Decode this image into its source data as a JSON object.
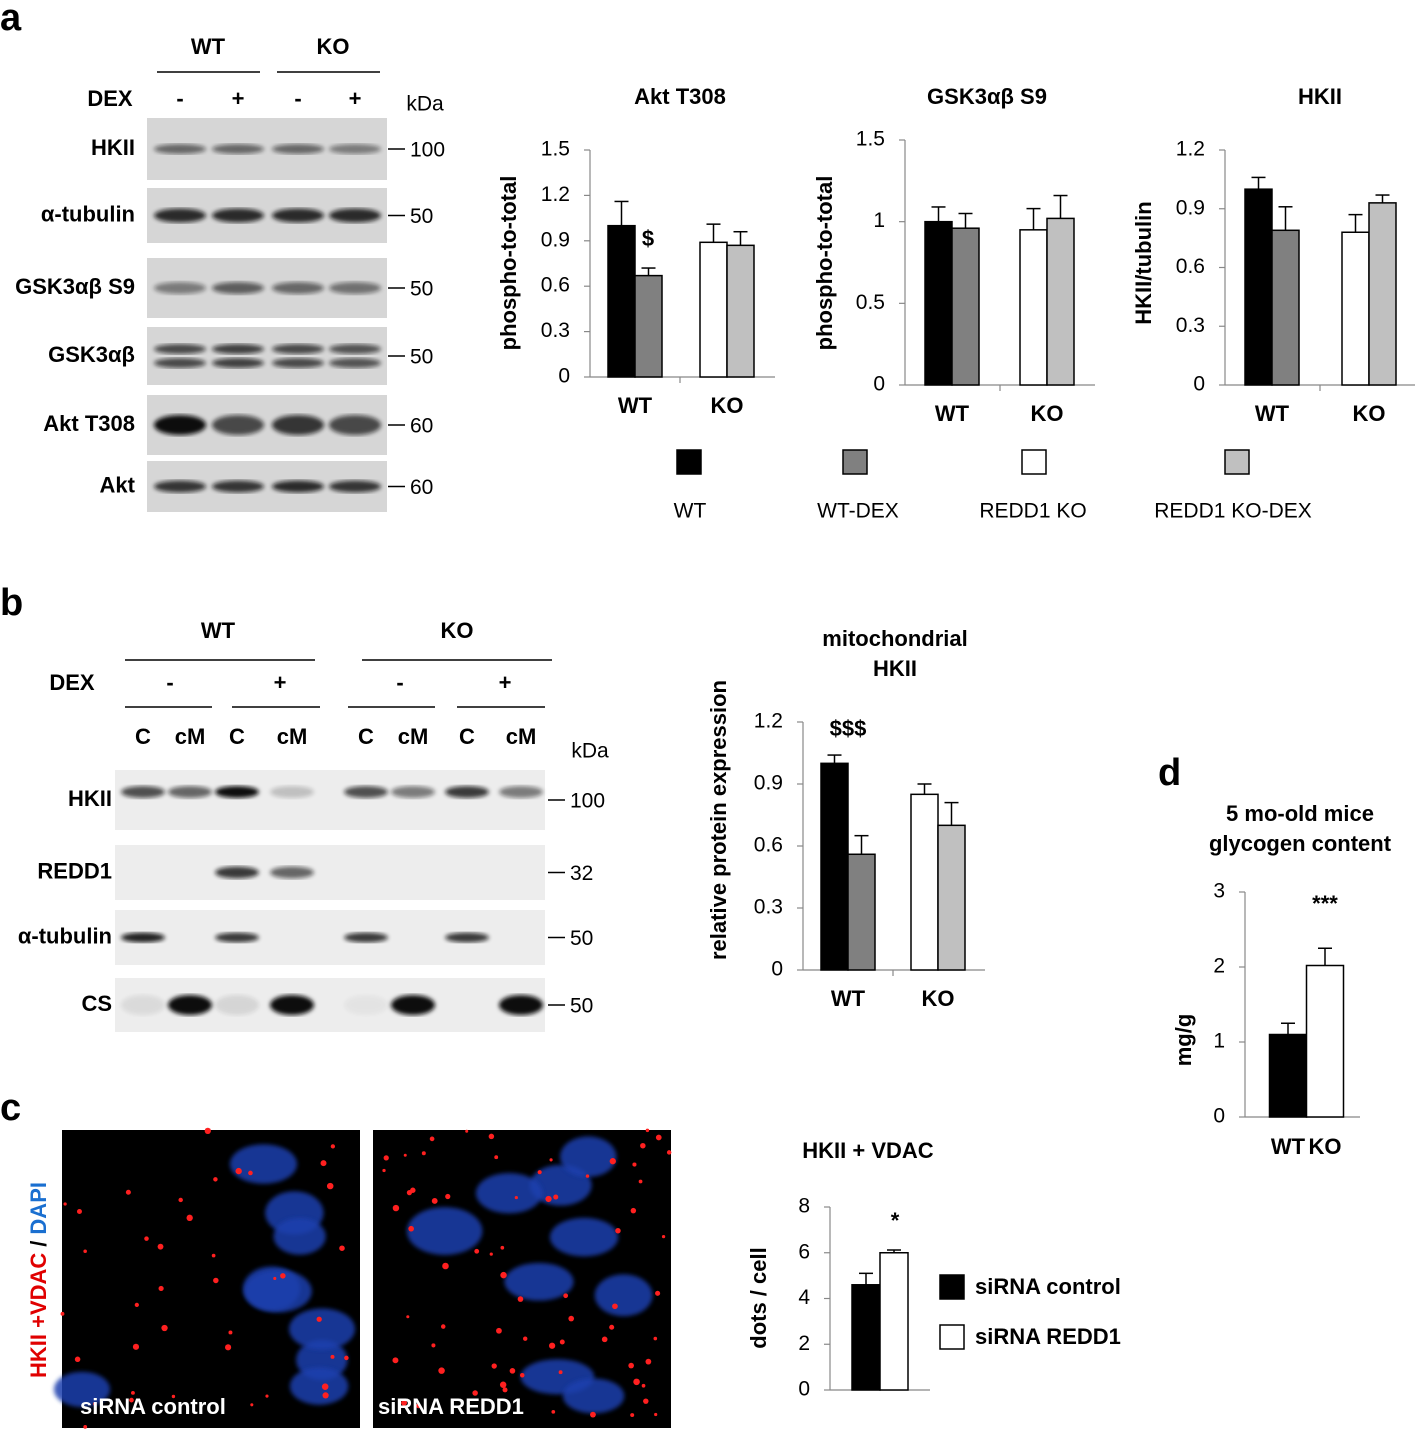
{
  "panel_labels": [
    "a",
    "b",
    "c",
    "d"
  ],
  "blot_a": {
    "groups": [
      "WT",
      "KO"
    ],
    "treatment": "DEX",
    "signs": [
      "-",
      "+",
      "-",
      "+"
    ],
    "unit": "kDa",
    "rows": [
      "HKII",
      "α-tubulin",
      "GSK3αβ S9",
      "GSK3αβ",
      "Akt T308",
      "Akt"
    ],
    "markers": [
      100,
      50,
      50,
      50,
      60,
      60
    ]
  },
  "blot_b": {
    "groups": [
      "WT",
      "KO"
    ],
    "treatment": "DEX",
    "signs": [
      "-",
      "+",
      "-",
      "+"
    ],
    "fractions": [
      "C",
      "cM",
      "C",
      "cM",
      "C",
      "cM",
      "C",
      "cM"
    ],
    "unit": "kDa",
    "rows": [
      "HKII",
      "REDD1",
      "α-tubulin",
      "CS"
    ],
    "markers": [
      100,
      32,
      50,
      50
    ]
  },
  "images": {
    "stain_label": [
      "HKII +VDAC",
      "/",
      "DAPI"
    ],
    "captions": [
      "siRNA control",
      "siRNA REDD1"
    ]
  },
  "chart_data": [
    {
      "type": "bar",
      "title": "Akt T308",
      "y_label": "phospho-to-total",
      "categories": [
        "WT",
        "KO"
      ],
      "ylim": [
        0,
        1.5
      ],
      "yticks": [
        0,
        0.3,
        0.6,
        0.9,
        1.2,
        1.5
      ],
      "annotations": [
        "$"
      ],
      "series": [
        {
          "name": "WT",
          "color": "#000000",
          "values": [
            1.0,
            null
          ],
          "errors": [
            0.16,
            null
          ]
        },
        {
          "name": "WT-DEX",
          "color": "#808080",
          "values": [
            0.67,
            null
          ],
          "errors": [
            0.05,
            null
          ]
        },
        {
          "name": "REDD1 KO",
          "color": "#ffffff",
          "values": [
            null,
            0.89
          ],
          "errors": [
            null,
            0.12
          ]
        },
        {
          "name": "REDD1 KO-DEX",
          "color": "#c0c0c0",
          "values": [
            null,
            0.87
          ],
          "errors": [
            null,
            0.09
          ]
        }
      ]
    },
    {
      "type": "bar",
      "title": "GSK3αβ S9",
      "y_label": "phospho-to-total",
      "categories": [
        "WT",
        "KO"
      ],
      "ylim": [
        0,
        1.5
      ],
      "yticks": [
        0,
        0.5,
        1,
        1.5
      ],
      "series": [
        {
          "color": "#000000",
          "values": [
            1.0,
            null
          ],
          "errors": [
            0.09,
            null
          ]
        },
        {
          "color": "#808080",
          "values": [
            0.96,
            null
          ],
          "errors": [
            0.09,
            null
          ]
        },
        {
          "color": "#ffffff",
          "values": [
            null,
            0.95
          ],
          "errors": [
            null,
            0.13
          ]
        },
        {
          "color": "#c0c0c0",
          "values": [
            null,
            1.02
          ],
          "errors": [
            null,
            0.14
          ]
        }
      ]
    },
    {
      "type": "bar",
      "title": "HKII",
      "y_label": "HKII/tubulin",
      "categories": [
        "WT",
        "KO"
      ],
      "ylim": [
        0,
        1.2
      ],
      "yticks": [
        0,
        0.3,
        0.6,
        0.9,
        1.2
      ],
      "series": [
        {
          "color": "#000000",
          "values": [
            1.0,
            null
          ],
          "errors": [
            0.06,
            null
          ]
        },
        {
          "color": "#808080",
          "values": [
            0.79,
            null
          ],
          "errors": [
            0.12,
            null
          ]
        },
        {
          "color": "#ffffff",
          "values": [
            null,
            0.78
          ],
          "errors": [
            null,
            0.09
          ]
        },
        {
          "color": "#c0c0c0",
          "values": [
            null,
            0.93
          ],
          "errors": [
            null,
            0.04
          ]
        }
      ]
    },
    {
      "type": "bar",
      "title": [
        "mitochondrial",
        "HKII"
      ],
      "y_label": "relative protein expression",
      "categories": [
        "WT",
        "KO"
      ],
      "ylim": [
        0,
        1.2
      ],
      "yticks": [
        0,
        0.3,
        0.6,
        0.9,
        1.2
      ],
      "annotations": [
        "$$$"
      ],
      "series": [
        {
          "color": "#000000",
          "values": [
            1.0,
            null
          ],
          "errors": [
            0.04,
            null
          ]
        },
        {
          "color": "#808080",
          "values": [
            0.56,
            null
          ],
          "errors": [
            0.09,
            null
          ]
        },
        {
          "color": "#ffffff",
          "values": [
            null,
            0.85
          ],
          "errors": [
            null,
            0.05
          ]
        },
        {
          "color": "#c0c0c0",
          "values": [
            null,
            0.7
          ],
          "errors": [
            null,
            0.11
          ]
        }
      ]
    },
    {
      "type": "bar",
      "title": "HKII + VDAC",
      "y_label": "dots / cell",
      "ylim": [
        0,
        8
      ],
      "yticks": [
        0,
        2,
        4,
        6,
        8
      ],
      "annotations": [
        "*"
      ],
      "series": [
        {
          "name": "siRNA control",
          "color": "#000000",
          "values": [
            4.6
          ],
          "errors": [
            0.5
          ]
        },
        {
          "name": "siRNA REDD1",
          "color": "#ffffff",
          "values": [
            6.0
          ],
          "errors": [
            0.12
          ]
        }
      ]
    },
    {
      "type": "bar",
      "title": [
        "5 mo-old mice",
        "glycogen content"
      ],
      "y_label": "mg/g",
      "categories": [
        "WT",
        "KO"
      ],
      "ylim": [
        0,
        3
      ],
      "yticks": [
        0,
        1,
        2,
        3
      ],
      "annotations": [
        "***"
      ],
      "series": [
        {
          "color": "#000000",
          "values": [
            1.1,
            null
          ],
          "errors": [
            0.15,
            null
          ]
        },
        {
          "color": "#ffffff",
          "values": [
            null,
            2.02
          ],
          "errors": [
            null,
            0.23
          ]
        }
      ]
    }
  ]
}
